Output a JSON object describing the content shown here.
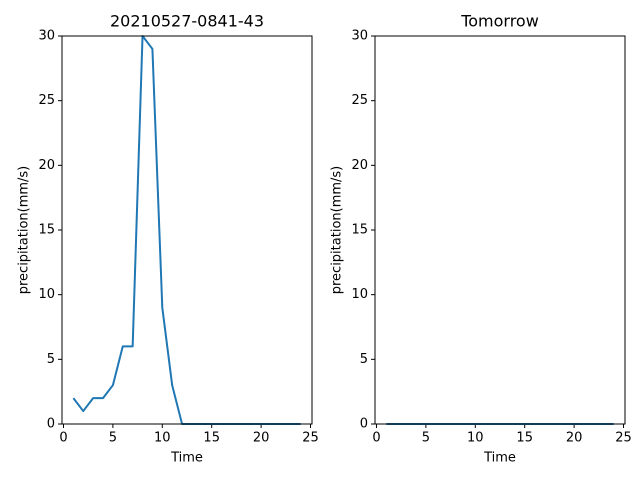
{
  "chart_data": [
    {
      "type": "line",
      "title": "20210527-0841-43",
      "xlabel": "Time",
      "ylabel": "precipitation(mm/s)",
      "x": [
        1,
        2,
        3,
        4,
        5,
        6,
        7,
        8,
        9,
        10,
        11,
        12,
        13,
        14,
        15,
        16,
        17,
        18,
        19,
        20,
        21,
        22,
        23,
        24
      ],
      "series": [
        {
          "color": "#1f77b4",
          "values": [
            2,
            1,
            2,
            2,
            3,
            6,
            6,
            30,
            29,
            9,
            3,
            0,
            0,
            0,
            0,
            0,
            0,
            0,
            0,
            0,
            0,
            0,
            0,
            0
          ]
        }
      ],
      "xlim": [
        -0.15,
        25.15
      ],
      "ylim": [
        0,
        30
      ],
      "xticks": [
        0,
        5,
        10,
        15,
        20,
        25
      ],
      "yticks": [
        0,
        5,
        10,
        15,
        20,
        25,
        30
      ]
    },
    {
      "type": "line",
      "title": "Tomorrow",
      "xlabel": "Time",
      "ylabel": "precipitation(mm/s)",
      "x": [
        1,
        2,
        3,
        4,
        5,
        6,
        7,
        8,
        9,
        10,
        11,
        12,
        13,
        14,
        15,
        16,
        17,
        18,
        19,
        20,
        21,
        22,
        23,
        24
      ],
      "series": [
        {
          "color": "#1f77b4",
          "values": [
            0,
            0,
            0,
            0,
            0,
            0,
            0,
            0,
            0,
            0,
            0,
            0,
            0,
            0,
            0,
            0,
            0,
            0,
            0,
            0,
            0,
            0,
            0,
            0
          ]
        }
      ],
      "xlim": [
        -0.15,
        25.15
      ],
      "ylim": [
        0,
        30
      ],
      "xticks": [
        0,
        5,
        10,
        15,
        20,
        25
      ],
      "yticks": [
        0,
        5,
        10,
        15,
        20,
        25,
        30
      ]
    }
  ]
}
